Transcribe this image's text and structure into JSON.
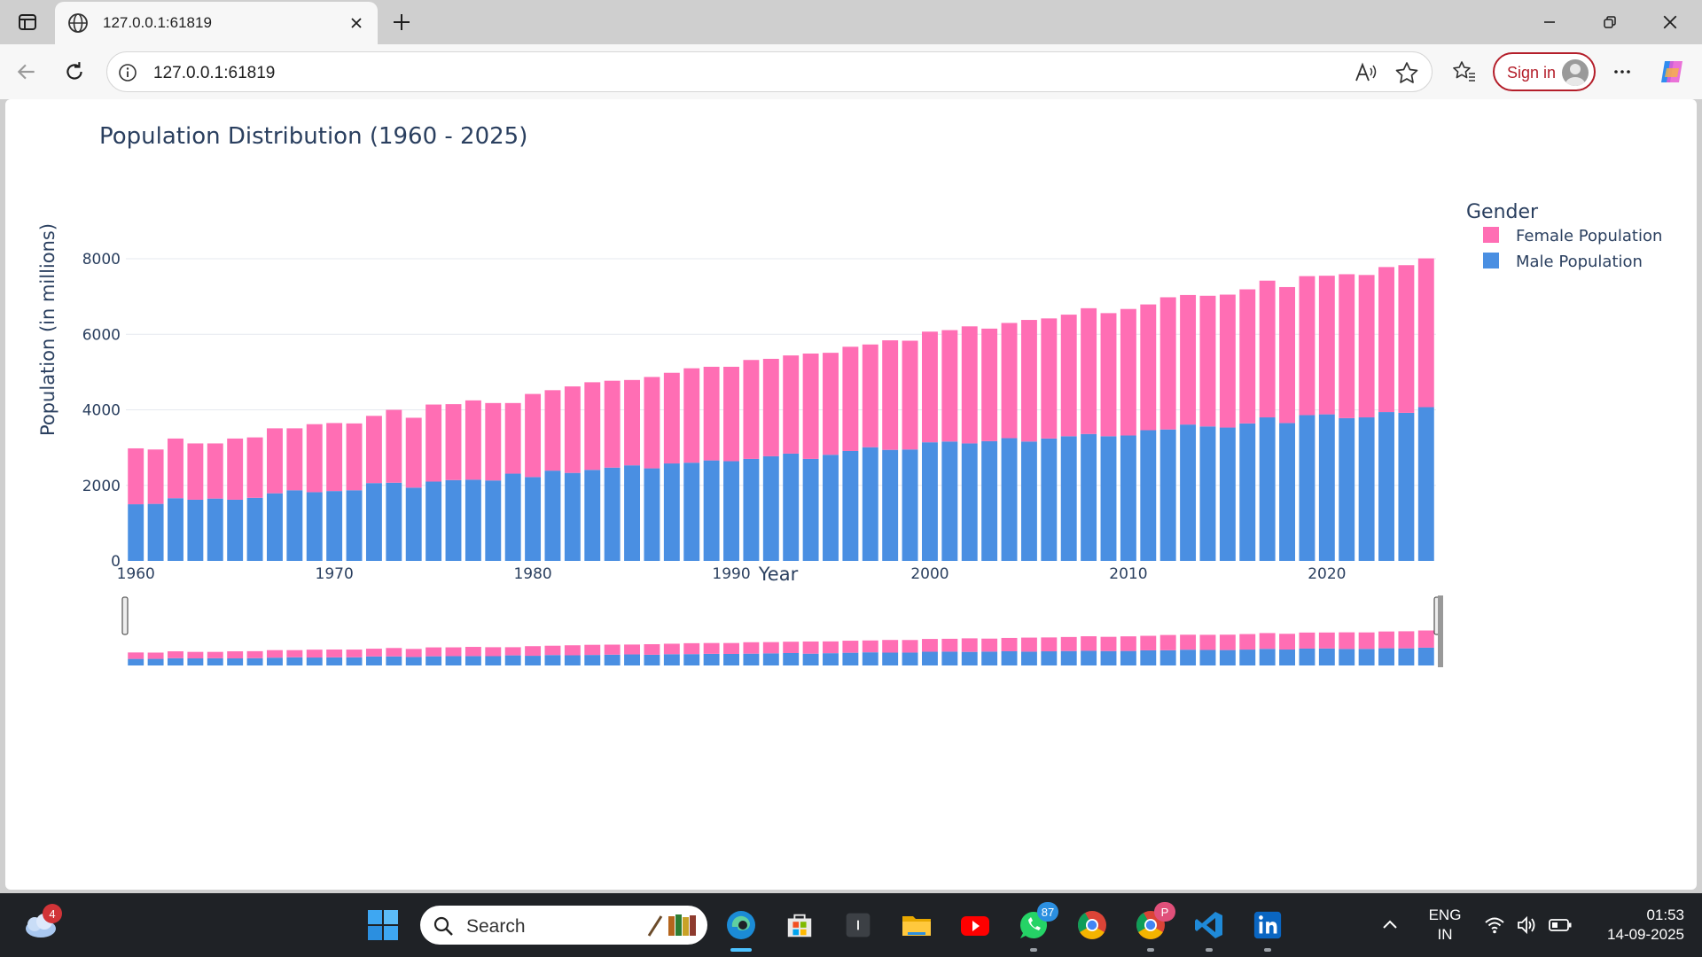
{
  "browser": {
    "tab_title": "127.0.0.1:61819",
    "url": "127.0.0.1:61819",
    "signin_label": "Sign in"
  },
  "chart_data": {
    "type": "bar",
    "barmode": "stack",
    "title": "Population Distribution (1960 - 2025)",
    "xlabel": "Year",
    "ylabel": "Population (in millions)",
    "ylim": [
      0,
      8000
    ],
    "yticks": [
      "0",
      "2000",
      "4000",
      "6000",
      "8000"
    ],
    "xticks": [
      "1960",
      "1970",
      "1980",
      "1990",
      "2000",
      "2010",
      "2020"
    ],
    "grid": true,
    "legend_title": "Gender",
    "legend_position": "top-right",
    "rangeslider": true,
    "x": [
      1960,
      1961,
      1962,
      1963,
      1964,
      1965,
      1966,
      1967,
      1968,
      1969,
      1970,
      1971,
      1972,
      1973,
      1974,
      1975,
      1976,
      1977,
      1978,
      1979,
      1980,
      1981,
      1982,
      1983,
      1984,
      1985,
      1986,
      1987,
      1988,
      1989,
      1990,
      1991,
      1992,
      1993,
      1994,
      1995,
      1996,
      1997,
      1998,
      1999,
      2000,
      2001,
      2002,
      2003,
      2004,
      2005,
      2006,
      2007,
      2008,
      2009,
      2010,
      2011,
      2012,
      2013,
      2014,
      2015,
      2016,
      2017,
      2018,
      2019,
      2020,
      2021,
      2022,
      2023,
      2024,
      2025
    ],
    "series": [
      {
        "name": "Male Population",
        "color": "#4a8fe2",
        "values": [
          1500,
          1510,
          1660,
          1620,
          1650,
          1620,
          1670,
          1790,
          1870,
          1820,
          1850,
          1870,
          2060,
          2070,
          1940,
          2100,
          2140,
          2150,
          2130,
          2310,
          2220,
          2390,
          2330,
          2410,
          2470,
          2530,
          2450,
          2580,
          2600,
          2660,
          2640,
          2700,
          2770,
          2840,
          2700,
          2810,
          2910,
          3010,
          2940,
          2950,
          3140,
          3160,
          3110,
          3170,
          3250,
          3160,
          3240,
          3300,
          3360,
          3300,
          3320,
          3460,
          3480,
          3610,
          3560,
          3530,
          3640,
          3800,
          3650,
          3860,
          3880,
          3780,
          3800,
          3940,
          3920,
          4070
        ]
      },
      {
        "name": "Female Population",
        "color": "#ff6eb4",
        "values": [
          1480,
          1440,
          1580,
          1490,
          1460,
          1620,
          1600,
          1720,
          1640,
          1800,
          1800,
          1770,
          1780,
          1930,
          1850,
          2040,
          2010,
          2100,
          2050,
          1870,
          2200,
          2130,
          2290,
          2320,
          2300,
          2260,
          2420,
          2400,
          2500,
          2480,
          2500,
          2620,
          2580,
          2600,
          2790,
          2700,
          2760,
          2720,
          2900,
          2880,
          2930,
          2950,
          3100,
          2980,
          3050,
          3220,
          3180,
          3220,
          3330,
          3260,
          3350,
          3330,
          3500,
          3430,
          3460,
          3520,
          3550,
          3620,
          3600,
          3680,
          3670,
          3810,
          3770,
          3840,
          3910,
          3940
        ]
      }
    ]
  },
  "taskbar": {
    "weather_badge": "4",
    "search_label": "Search",
    "whatsapp_badge": "87",
    "chrome_profile_badge": "P",
    "lang_line1": "ENG",
    "lang_line2": "IN",
    "time": "01:53",
    "date": "14-09-2025"
  },
  "colors": {
    "accent_signin": "#b41e2a",
    "plot_text": "#2a3f5f",
    "taskbar_bg": "#1f2226"
  }
}
